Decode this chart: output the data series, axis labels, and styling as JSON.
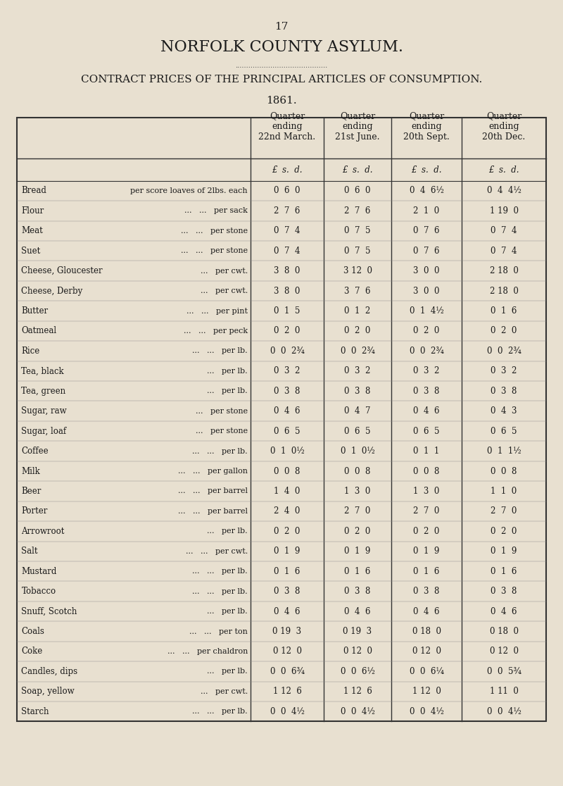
{
  "page_number": "17",
  "title": "NORFOLK COUNTY ASYLUM.",
  "subtitle": "CONTRACT PRICES OF THE PRINCIPAL ARTICLES OF CONSUMPTION.",
  "year": "1861.",
  "bg_color": "#e8e0d0",
  "col_headers": [
    "Quarter\nending\n22nd March.",
    "Quarter\nending\n21st June.",
    "Quarter\nending\n20th Sept.",
    "Quarter\nending\n20th Dec."
  ],
  "currency_headers": [
    "£  s.  d.",
    "£  s.  d.",
    "£  s.  d.",
    "£  s.  d."
  ],
  "rows": [
    [
      "Bread",
      "per score loaves of 2lbs. each",
      "0  6  0",
      "0  6  0",
      "0  4  6½",
      "0  4  4½"
    ],
    [
      "Flour",
      "...   ...   per sack",
      "2  7  6",
      "2  7  6",
      "2  1  0",
      "1 19  0"
    ],
    [
      "Meat",
      "...   ...   per stone",
      "0  7  4",
      "0  7  5",
      "0  7  6",
      "0  7  4"
    ],
    [
      "Suet",
      "...   ...   per stone",
      "0  7  4",
      "0  7  5",
      "0  7  6",
      "0  7  4"
    ],
    [
      "Cheese, Gloucester",
      "...   per cwt.",
      "3  8  0",
      "3 12  0",
      "3  0  0",
      "2 18  0"
    ],
    [
      "Cheese, Derby",
      "...   per cwt.",
      "3  8  0",
      "3  7  6",
      "3  0  0",
      "2 18  0"
    ],
    [
      "Butter",
      "...   ...   per pint",
      "0  1  5",
      "0  1  2",
      "0  1  4½",
      "0  1  6"
    ],
    [
      "Oatmeal",
      "...   ...   per peck",
      "0  2  0",
      "0  2  0",
      "0  2  0",
      "0  2  0"
    ],
    [
      "Rice",
      "...   ...   per lb.",
      "0  0  2¾",
      "0  0  2¾",
      "0  0  2¾",
      "0  0  2¾"
    ],
    [
      "Tea, black",
      "...   per lb.",
      "0  3  2",
      "0  3  2",
      "0  3  2",
      "0  3  2"
    ],
    [
      "Tea, green",
      "...   per lb.",
      "0  3  8",
      "0  3  8",
      "0  3  8",
      "0  3  8"
    ],
    [
      "Sugar, raw",
      "...   per stone",
      "0  4  6",
      "0  4  7",
      "0  4  6",
      "0  4  3"
    ],
    [
      "Sugar, loaf",
      "...   per stone",
      "0  6  5",
      "0  6  5",
      "0  6  5",
      "0  6  5"
    ],
    [
      "Coffee",
      "...   ...   per lb.",
      "0  1  0½",
      "0  1  0½",
      "0  1  1",
      "0  1  1½"
    ],
    [
      "Milk",
      "...   ...   per gallon",
      "0  0  8",
      "0  0  8",
      "0  0  8",
      "0  0  8"
    ],
    [
      "Beer",
      "...   ...   per barrel",
      "1  4  0",
      "1  3  0",
      "1  3  0",
      "1  1  0"
    ],
    [
      "Porter",
      "...   ...   per barrel",
      "2  4  0",
      "2  7  0",
      "2  7  0",
      "2  7  0"
    ],
    [
      "Arrowroot",
      "...   per lb.",
      "0  2  0",
      "0  2  0",
      "0  2  0",
      "0  2  0"
    ],
    [
      "Salt",
      "...   ...   per cwt.",
      "0  1  9",
      "0  1  9",
      "0  1  9",
      "0  1  9"
    ],
    [
      "Mustard",
      "...   ...   per lb.",
      "0  1  6",
      "0  1  6",
      "0  1  6",
      "0  1  6"
    ],
    [
      "Tobacco",
      "...   ...   per lb.",
      "0  3  8",
      "0  3  8",
      "0  3  8",
      "0  3  8"
    ],
    [
      "Snuff, Scotch",
      "...   per lb.",
      "0  4  6",
      "0  4  6",
      "0  4  6",
      "0  4  6"
    ],
    [
      "Coals",
      "...   ...   per ton",
      "0 19  3",
      "0 19  3",
      "0 18  0",
      "0 18  0"
    ],
    [
      "Coke",
      "...   ...   per chaldron",
      "0 12  0",
      "0 12  0",
      "0 12  0",
      "0 12  0"
    ],
    [
      "Candles, dips",
      "...   per lb.",
      "0  0  6¾",
      "0  0  6½",
      "0  0  6¼",
      "0  0  5¾"
    ],
    [
      "Soap, yellow",
      "...   per cwt.",
      "1 12  6",
      "1 12  6",
      "1 12  0",
      "1 11  0"
    ],
    [
      "Starch",
      "...   ...   per lb.",
      "0  0  4½",
      "0  0  4½",
      "0  0  4½",
      "0  0  4½"
    ]
  ]
}
